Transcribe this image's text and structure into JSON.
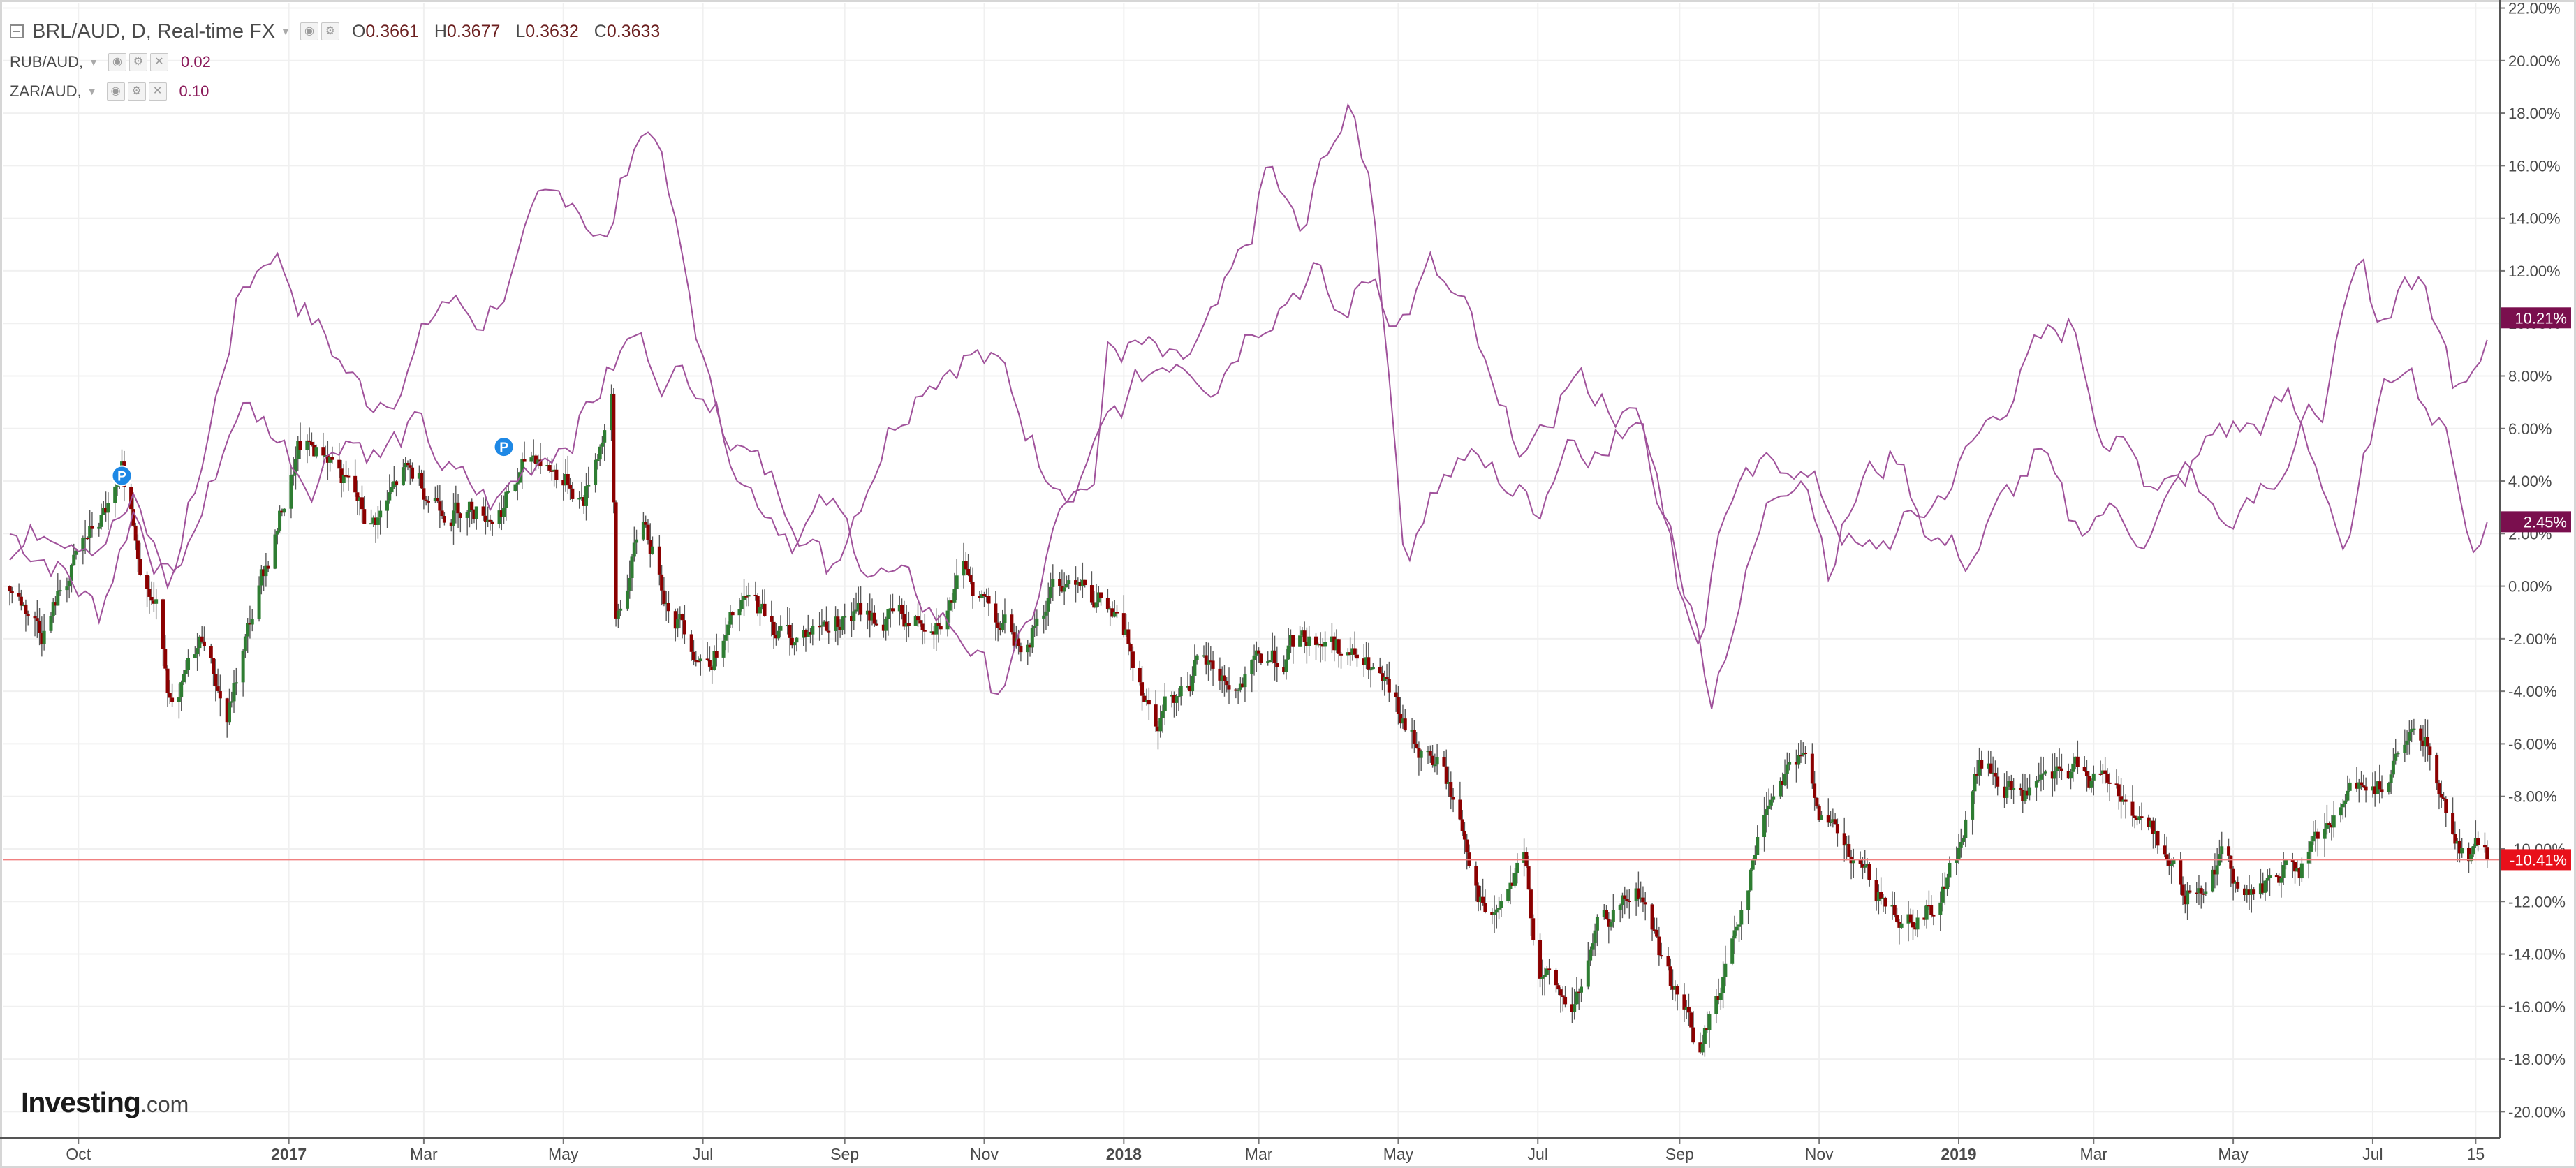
{
  "legend": {
    "main_label": "BRL/AUD, D, Real-time FX",
    "ohlc": [
      {
        "key": "O",
        "value": "0.3661"
      },
      {
        "key": "H",
        "value": "0.3677"
      },
      {
        "key": "L",
        "value": "0.3632"
      },
      {
        "key": "C",
        "value": "0.3633"
      }
    ],
    "compare": [
      {
        "label": "RUB/AUD,",
        "value": "0.02"
      },
      {
        "label": "ZAR/AUD,",
        "value": "0.10"
      }
    ],
    "icons": [
      "eye-icon",
      "settings-icon",
      "close-icon"
    ]
  },
  "logo": {
    "main": "Investing",
    "suffix": ".com"
  },
  "colors": {
    "up": "#2e7d32",
    "down": "#8b0000",
    "wick": "#5a5a5a",
    "compare_line": "#a0529b",
    "compare_badge": "#7a0f4e",
    "last_price_line": "#f08080",
    "last_price_badge": "#e8101a",
    "grid": "#f0f0f0",
    "axis_text": "#4a4a4a",
    "pin": "#1e88e5"
  },
  "chart_data": {
    "type": "line",
    "title": "BRL/AUD, D, Real-time FX",
    "y_unit": "percent change",
    "ylim": [
      -21,
      22.2
    ],
    "grid": true,
    "y_ticks": [
      "22.00%",
      "20.00%",
      "18.00%",
      "16.00%",
      "14.00%",
      "12.00%",
      "10.00%",
      "8.00%",
      "6.00%",
      "4.00%",
      "2.00%",
      "0.00%",
      "-2.00%",
      "-4.00%",
      "-6.00%",
      "-8.00%",
      "-10.00%",
      "-12.00%",
      "-14.00%",
      "-16.00%",
      "-18.00%",
      "-20.00%"
    ],
    "y_tick_values": [
      22,
      20,
      18,
      16,
      14,
      12,
      10,
      8,
      6,
      4,
      2,
      0,
      -2,
      -4,
      -6,
      -8,
      -10,
      -12,
      -14,
      -16,
      -18,
      -20
    ],
    "x_ticks": [
      {
        "label": "Oct",
        "date": "2016-10-01",
        "bold": false
      },
      {
        "label": "2017",
        "date": "2017-01-01",
        "bold": true
      },
      {
        "label": "Mar",
        "date": "2017-03-01",
        "bold": false
      },
      {
        "label": "May",
        "date": "2017-05-01",
        "bold": false
      },
      {
        "label": "Jul",
        "date": "2017-07-01",
        "bold": false
      },
      {
        "label": "Sep",
        "date": "2017-09-01",
        "bold": false
      },
      {
        "label": "Nov",
        "date": "2017-11-01",
        "bold": false
      },
      {
        "label": "2018",
        "date": "2018-01-01",
        "bold": true
      },
      {
        "label": "Mar",
        "date": "2018-03-01",
        "bold": false
      },
      {
        "label": "May",
        "date": "2018-05-01",
        "bold": false
      },
      {
        "label": "Jul",
        "date": "2018-07-01",
        "bold": false
      },
      {
        "label": "Sep",
        "date": "2018-09-01",
        "bold": false
      },
      {
        "label": "Nov",
        "date": "2018-11-01",
        "bold": false
      },
      {
        "label": "2019",
        "date": "2019-01-01",
        "bold": true
      },
      {
        "label": "Mar",
        "date": "2019-03-01",
        "bold": false
      },
      {
        "label": "May",
        "date": "2019-05-01",
        "bold": false
      },
      {
        "label": "Jul",
        "date": "2019-07-01",
        "bold": false
      },
      {
        "label": "15",
        "date": "2019-08-15",
        "bold": false
      }
    ],
    "x_range": [
      "2016-09-01",
      "2019-08-21"
    ],
    "series": [
      {
        "name": "BRL/AUD",
        "style": "candles",
        "last_label": "-10.41%",
        "last_value": -10.41,
        "points": [
          [
            "2016-09-01",
            0
          ],
          [
            "2016-09-15",
            -1.5
          ],
          [
            "2016-10-01",
            1
          ],
          [
            "2016-10-20",
            3.5
          ],
          [
            "2016-11-05",
            -1
          ],
          [
            "2016-11-12",
            -5
          ],
          [
            "2016-11-25",
            -2
          ],
          [
            "2016-12-05",
            -5
          ],
          [
            "2016-12-20",
            0
          ],
          [
            "2017-01-05",
            5
          ],
          [
            "2017-01-20",
            5
          ],
          [
            "2017-02-05",
            2
          ],
          [
            "2017-02-20",
            4
          ],
          [
            "2017-03-10",
            3.5
          ],
          [
            "2017-04-01",
            3
          ],
          [
            "2017-04-20",
            5
          ],
          [
            "2017-05-10",
            3.5
          ],
          [
            "2017-05-22",
            7.2
          ],
          [
            "2017-05-24",
            -1.5
          ],
          [
            "2017-06-05",
            2.5
          ],
          [
            "2017-06-15",
            0
          ],
          [
            "2017-07-01",
            -2.5
          ],
          [
            "2017-07-20",
            -1
          ],
          [
            "2017-08-10",
            -2
          ],
          [
            "2017-09-01",
            -1
          ],
          [
            "2017-10-01",
            -1.5
          ],
          [
            "2017-10-25",
            0.5
          ],
          [
            "2017-11-15",
            -2
          ],
          [
            "2017-12-01",
            0
          ],
          [
            "2017-12-15",
            1
          ],
          [
            "2018-01-01",
            -2
          ],
          [
            "2018-01-15",
            -4.5
          ],
          [
            "2018-02-01",
            -3
          ],
          [
            "2018-02-20",
            -4
          ],
          [
            "2018-03-15",
            -2.5
          ],
          [
            "2018-04-01",
            -2
          ],
          [
            "2018-04-20",
            -3.5
          ],
          [
            "2018-05-05",
            -6
          ],
          [
            "2018-05-20",
            -7
          ],
          [
            "2018-06-01",
            -10
          ],
          [
            "2018-06-10",
            -13
          ],
          [
            "2018-06-25",
            -11
          ],
          [
            "2018-07-01",
            -14.5
          ],
          [
            "2018-07-15",
            -16.5
          ],
          [
            "2018-07-30",
            -13
          ],
          [
            "2018-08-15",
            -12
          ],
          [
            "2018-09-01",
            -16
          ],
          [
            "2018-09-10",
            -18
          ],
          [
            "2018-09-20",
            -15
          ],
          [
            "2018-10-01",
            -11
          ],
          [
            "2018-10-10",
            -8
          ],
          [
            "2018-10-20",
            -6
          ],
          [
            "2018-10-25",
            -6.5
          ],
          [
            "2018-11-05",
            -9
          ],
          [
            "2018-11-15",
            -11
          ],
          [
            "2018-12-01",
            -12.5
          ],
          [
            "2018-12-20",
            -12
          ],
          [
            "2019-01-01",
            -10
          ],
          [
            "2019-01-10",
            -7
          ],
          [
            "2019-01-25",
            -8
          ],
          [
            "2019-02-10",
            -8
          ],
          [
            "2019-02-25",
            -7
          ],
          [
            "2019-03-15",
            -8
          ],
          [
            "2019-04-01",
            -10
          ],
          [
            "2019-04-10",
            -12
          ],
          [
            "2019-04-25",
            -10
          ],
          [
            "2019-05-10",
            -12
          ],
          [
            "2019-05-25",
            -11
          ],
          [
            "2019-06-10",
            -10
          ],
          [
            "2019-06-25",
            -8
          ],
          [
            "2019-07-05",
            -7
          ],
          [
            "2019-07-15",
            -6.5
          ],
          [
            "2019-07-25",
            -6
          ],
          [
            "2019-08-01",
            -8.5
          ],
          [
            "2019-08-10",
            -10
          ],
          [
            "2019-08-20",
            -10.41
          ]
        ]
      },
      {
        "name": "RUB/AUD",
        "style": "line",
        "last_label": "10.21%",
        "last_value": 10.21,
        "points": [
          [
            "2016-09-01",
            2
          ],
          [
            "2016-09-20",
            1
          ],
          [
            "2016-10-10",
            -1
          ],
          [
            "2016-10-25",
            3
          ],
          [
            "2016-11-10",
            0
          ],
          [
            "2016-11-25",
            5
          ],
          [
            "2016-12-10",
            11
          ],
          [
            "2016-12-25",
            13
          ],
          [
            "2017-01-05",
            11
          ],
          [
            "2017-01-20",
            9
          ],
          [
            "2017-02-05",
            7
          ],
          [
            "2017-02-20",
            8
          ],
          [
            "2017-03-10",
            11
          ],
          [
            "2017-03-25",
            10
          ],
          [
            "2017-04-10",
            12
          ],
          [
            "2017-04-20",
            14
          ],
          [
            "2017-05-05",
            15
          ],
          [
            "2017-05-20",
            13
          ],
          [
            "2017-06-01",
            17
          ],
          [
            "2017-06-10",
            17.6
          ],
          [
            "2017-06-20",
            13
          ],
          [
            "2017-07-05",
            7
          ],
          [
            "2017-07-20",
            5
          ],
          [
            "2017-08-10",
            3
          ],
          [
            "2017-08-25",
            0.5
          ],
          [
            "2017-09-05",
            3
          ],
          [
            "2017-09-20",
            6
          ],
          [
            "2017-10-05",
            8
          ],
          [
            "2017-10-25",
            9
          ],
          [
            "2017-11-10",
            8
          ],
          [
            "2017-11-25",
            5
          ],
          [
            "2017-12-10",
            4
          ],
          [
            "2017-12-20",
            4
          ],
          [
            "2017-12-25",
            9
          ],
          [
            "2018-01-10",
            9
          ],
          [
            "2018-01-25",
            8
          ],
          [
            "2018-02-10",
            10
          ],
          [
            "2018-02-25",
            13
          ],
          [
            "2018-03-05",
            16
          ],
          [
            "2018-03-20",
            13
          ],
          [
            "2018-04-01",
            17
          ],
          [
            "2018-04-10",
            17.9
          ],
          [
            "2018-04-20",
            15
          ],
          [
            "2018-05-05",
            0.5
          ],
          [
            "2018-05-15",
            4
          ],
          [
            "2018-05-30",
            5
          ],
          [
            "2018-06-15",
            4
          ],
          [
            "2018-07-01",
            3
          ],
          [
            "2018-07-15",
            6
          ],
          [
            "2018-08-01",
            5
          ],
          [
            "2018-08-15",
            7
          ],
          [
            "2018-09-01",
            0
          ],
          [
            "2018-09-10",
            -2
          ],
          [
            "2018-09-20",
            3
          ],
          [
            "2018-10-05",
            4
          ],
          [
            "2018-10-20",
            5
          ],
          [
            "2018-11-05",
            3
          ],
          [
            "2018-11-20",
            1
          ],
          [
            "2018-12-05",
            2
          ],
          [
            "2018-12-20",
            3
          ],
          [
            "2019-01-05",
            5
          ],
          [
            "2019-01-20",
            7
          ],
          [
            "2019-02-05",
            9
          ],
          [
            "2019-02-20",
            10
          ],
          [
            "2019-03-05",
            6
          ],
          [
            "2019-03-25",
            4
          ],
          [
            "2019-04-10",
            5
          ],
          [
            "2019-04-25",
            2.5
          ],
          [
            "2019-05-10",
            4
          ],
          [
            "2019-05-25",
            5
          ],
          [
            "2019-06-10",
            7
          ],
          [
            "2019-06-25",
            12
          ],
          [
            "2019-07-05",
            10
          ],
          [
            "2019-07-15",
            12
          ],
          [
            "2019-07-25",
            11
          ],
          [
            "2019-08-05",
            8
          ],
          [
            "2019-08-15",
            9
          ],
          [
            "2019-08-20",
            10.21
          ]
        ]
      },
      {
        "name": "ZAR/AUD",
        "style": "line",
        "last_label": "2.45%",
        "last_value": 2.45,
        "points": [
          [
            "2016-09-01",
            1
          ],
          [
            "2016-09-20",
            2.5
          ],
          [
            "2016-10-10",
            2
          ],
          [
            "2016-10-25",
            3
          ],
          [
            "2016-11-10",
            0
          ],
          [
            "2016-11-25",
            3
          ],
          [
            "2016-12-10",
            7
          ],
          [
            "2016-12-25",
            6
          ],
          [
            "2017-01-10",
            4
          ],
          [
            "2017-01-25",
            6
          ],
          [
            "2017-02-10",
            5
          ],
          [
            "2017-02-25",
            6
          ],
          [
            "2017-03-15",
            4
          ],
          [
            "2017-04-01",
            3
          ],
          [
            "2017-04-20",
            5
          ],
          [
            "2017-05-05",
            6
          ],
          [
            "2017-05-20",
            8
          ],
          [
            "2017-06-01",
            9.5
          ],
          [
            "2017-06-15",
            8
          ],
          [
            "2017-07-01",
            8
          ],
          [
            "2017-07-20",
            4
          ],
          [
            "2017-08-10",
            2
          ],
          [
            "2017-08-25",
            3
          ],
          [
            "2017-09-10",
            1
          ],
          [
            "2017-09-25",
            0
          ],
          [
            "2017-10-10",
            -1
          ],
          [
            "2017-10-25",
            -2
          ],
          [
            "2017-11-05",
            -4
          ],
          [
            "2017-11-20",
            -2
          ],
          [
            "2017-12-01",
            2
          ],
          [
            "2017-12-15",
            4
          ],
          [
            "2017-12-25",
            6
          ],
          [
            "2018-01-10",
            8
          ],
          [
            "2018-01-25",
            9
          ],
          [
            "2018-02-10",
            8
          ],
          [
            "2018-02-25",
            10
          ],
          [
            "2018-03-10",
            11
          ],
          [
            "2018-03-25",
            12
          ],
          [
            "2018-04-05",
            10
          ],
          [
            "2018-04-20",
            12
          ],
          [
            "2018-05-01",
            10
          ],
          [
            "2018-05-15",
            12
          ],
          [
            "2018-06-01",
            10
          ],
          [
            "2018-06-15",
            6
          ],
          [
            "2018-07-01",
            5
          ],
          [
            "2018-07-15",
            8
          ],
          [
            "2018-08-01",
            7
          ],
          [
            "2018-08-15",
            6
          ],
          [
            "2018-09-01",
            1
          ],
          [
            "2018-09-15",
            -4
          ],
          [
            "2018-09-25",
            -1
          ],
          [
            "2018-10-10",
            3
          ],
          [
            "2018-10-25",
            5
          ],
          [
            "2018-11-05",
            1
          ],
          [
            "2018-11-20",
            4
          ],
          [
            "2018-12-05",
            5
          ],
          [
            "2018-12-20",
            2
          ],
          [
            "2019-01-05",
            1
          ],
          [
            "2019-01-20",
            3
          ],
          [
            "2019-02-05",
            5
          ],
          [
            "2019-02-20",
            2
          ],
          [
            "2019-03-05",
            3
          ],
          [
            "2019-03-25",
            2
          ],
          [
            "2019-04-10",
            4
          ],
          [
            "2019-04-25",
            6
          ],
          [
            "2019-05-10",
            6
          ],
          [
            "2019-05-25",
            7
          ],
          [
            "2019-06-10",
            4
          ],
          [
            "2019-06-20",
            1
          ],
          [
            "2019-07-01",
            6
          ],
          [
            "2019-07-15",
            9
          ],
          [
            "2019-07-25",
            7
          ],
          [
            "2019-08-05",
            5
          ],
          [
            "2019-08-15",
            1
          ],
          [
            "2019-08-20",
            2.45
          ]
        ]
      }
    ],
    "annotations": [
      {
        "label": "P",
        "date": "2016-10-20",
        "value": 4.2
      },
      {
        "label": "P",
        "date": "2017-04-05",
        "value": 5.3
      }
    ]
  }
}
